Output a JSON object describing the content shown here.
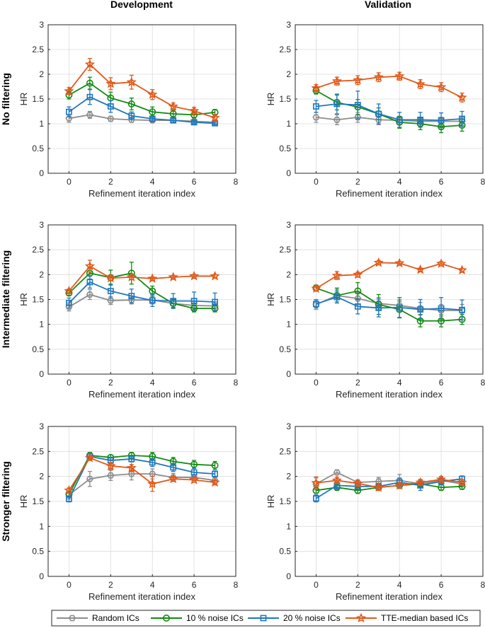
{
  "figure": {
    "column_titles": [
      "Development",
      "Validation"
    ],
    "row_titles": [
      "No filtering",
      "Intermediate filtering",
      "Stronger filtering"
    ],
    "legend": [
      "Random ICs",
      "10 % noise ICs",
      "20 % noise ICs",
      "TTE-median based ICs"
    ],
    "series_colors": [
      "#8c8c8c",
      "#138a13",
      "#1f77bd",
      "#e05a1b"
    ],
    "series_markers": [
      "hexagon",
      "circle",
      "square",
      "star"
    ]
  },
  "chart_data": [
    {
      "type": "line",
      "panel": "Development / No filtering",
      "title": "Development",
      "row_title": "No filtering",
      "xlabel": "Refinement iteration index",
      "ylabel": "HR",
      "xlim": [
        -1,
        8
      ],
      "ylim": [
        0,
        3
      ],
      "xticks": [
        0,
        2,
        4,
        6,
        8
      ],
      "yticks": [
        0,
        0.5,
        1,
        1.5,
        2,
        2.5,
        3
      ],
      "grid": true,
      "x": [
        0,
        1,
        2,
        3,
        4,
        5,
        6,
        7
      ],
      "series": [
        {
          "name": "Random ICs",
          "values": [
            1.11,
            1.18,
            1.1,
            1.08,
            1.07,
            1.07,
            1.05,
            1.03
          ],
          "err": [
            0.08,
            0.07,
            0.05,
            0.05,
            0.04,
            0.03,
            0.02,
            0.02
          ]
        },
        {
          "name": "10 % noise ICs",
          "values": [
            1.58,
            1.82,
            1.52,
            1.4,
            1.24,
            1.2,
            1.18,
            1.23
          ],
          "err": [
            0.08,
            0.12,
            0.12,
            0.12,
            0.1,
            0.06,
            0.06,
            0.06
          ]
        },
        {
          "name": "20 % noise ICs",
          "values": [
            1.24,
            1.54,
            1.35,
            1.16,
            1.1,
            1.07,
            1.03,
            1.01
          ],
          "err": [
            0.1,
            0.15,
            0.12,
            0.08,
            0.06,
            0.04,
            0.03,
            0.03
          ]
        },
        {
          "name": "TTE-median based ICs",
          "values": [
            1.66,
            2.2,
            1.81,
            1.84,
            1.59,
            1.35,
            1.26,
            1.12
          ],
          "err": [
            0.07,
            0.12,
            0.12,
            0.14,
            0.1,
            0.07,
            0.07,
            0.07
          ]
        }
      ]
    },
    {
      "type": "line",
      "panel": "Validation / No filtering",
      "title": "Validation",
      "row_title": "No filtering",
      "xlabel": "Refinement iteration index",
      "ylabel": "HR",
      "xlim": [
        -1,
        8
      ],
      "ylim": [
        0,
        3
      ],
      "xticks": [
        0,
        2,
        4,
        6,
        8
      ],
      "yticks": [
        0,
        0.5,
        1,
        1.5,
        2,
        2.5,
        3
      ],
      "grid": true,
      "x": [
        0,
        1,
        2,
        3,
        4,
        5,
        6,
        7
      ],
      "series": [
        {
          "name": "Random ICs",
          "values": [
            1.13,
            1.08,
            1.13,
            1.08,
            1.07,
            1.05,
            1.05,
            1.05
          ],
          "err": [
            0.1,
            0.1,
            0.1,
            0.1,
            0.08,
            0.08,
            0.08,
            0.08
          ]
        },
        {
          "name": "10 % noise ICs",
          "values": [
            1.67,
            1.43,
            1.34,
            1.2,
            1.03,
            1.0,
            0.94,
            0.97
          ],
          "err": [
            0.07,
            0.15,
            0.15,
            0.12,
            0.12,
            0.12,
            0.12,
            0.12
          ]
        },
        {
          "name": "20 % noise ICs",
          "values": [
            1.35,
            1.4,
            1.38,
            1.2,
            1.08,
            1.08,
            1.07,
            1.1
          ],
          "err": [
            0.12,
            0.2,
            0.28,
            0.2,
            0.15,
            0.15,
            0.15,
            0.15
          ]
        },
        {
          "name": "TTE-median based ICs",
          "values": [
            1.72,
            1.86,
            1.88,
            1.94,
            1.96,
            1.8,
            1.74,
            1.53
          ],
          "err": [
            0.07,
            0.08,
            0.09,
            0.09,
            0.08,
            0.09,
            0.09,
            0.09
          ]
        }
      ]
    },
    {
      "type": "line",
      "panel": "Development / Intermediate filtering",
      "title": "Development",
      "row_title": "Intermediate filtering",
      "xlabel": "Refinement iteration index",
      "ylabel": "HR",
      "xlim": [
        -1,
        8
      ],
      "ylim": [
        0,
        3
      ],
      "xticks": [
        0,
        2,
        4,
        6,
        8
      ],
      "yticks": [
        0,
        0.5,
        1,
        1.5,
        2,
        2.5,
        3
      ],
      "grid": true,
      "x": [
        0,
        1,
        2,
        3,
        4,
        5,
        6,
        7
      ],
      "series": [
        {
          "name": "Random ICs",
          "values": [
            1.35,
            1.6,
            1.48,
            1.49,
            1.49,
            1.42,
            1.38,
            1.37
          ],
          "err": [
            0.08,
            0.1,
            0.08,
            0.08,
            0.08,
            0.08,
            0.08,
            0.08
          ]
        },
        {
          "name": "10 % noise ICs",
          "values": [
            1.63,
            2.03,
            1.94,
            2.03,
            1.67,
            1.42,
            1.32,
            1.32
          ],
          "err": [
            0.05,
            0.12,
            0.15,
            0.22,
            0.1,
            0.08,
            0.07,
            0.07
          ]
        },
        {
          "name": "20 % noise ICs",
          "values": [
            1.43,
            1.85,
            1.67,
            1.57,
            1.48,
            1.47,
            1.47,
            1.45
          ],
          "err": [
            0.1,
            0.12,
            0.14,
            0.14,
            0.12,
            0.15,
            0.18,
            0.18
          ]
        },
        {
          "name": "TTE-median based ICs",
          "values": [
            1.67,
            2.17,
            1.93,
            1.95,
            1.92,
            1.95,
            1.97,
            1.97
          ],
          "err": [
            0.04,
            0.12,
            0.05,
            0.05,
            0.03,
            0.03,
            0.03,
            0.03
          ]
        }
      ]
    },
    {
      "type": "line",
      "panel": "Validation / Intermediate filtering",
      "title": "Validation",
      "row_title": "Intermediate filtering",
      "xlabel": "Refinement iteration index",
      "ylabel": "HR",
      "xlim": [
        -1,
        8
      ],
      "ylim": [
        0,
        3
      ],
      "xticks": [
        0,
        2,
        4,
        6,
        8
      ],
      "yticks": [
        0,
        0.5,
        1,
        1.5,
        2,
        2.5,
        3
      ],
      "grid": true,
      "x": [
        0,
        1,
        2,
        3,
        4,
        5,
        6,
        7
      ],
      "series": [
        {
          "name": "Random ICs",
          "values": [
            1.4,
            1.58,
            1.52,
            1.42,
            1.38,
            1.32,
            1.28,
            1.28
          ],
          "err": [
            0.1,
            0.12,
            0.12,
            0.12,
            0.12,
            0.12,
            0.12,
            0.12
          ]
        },
        {
          "name": "10 % noise ICs",
          "values": [
            1.73,
            1.58,
            1.67,
            1.4,
            1.3,
            1.07,
            1.07,
            1.1
          ],
          "err": [
            0.06,
            0.15,
            0.17,
            0.2,
            0.17,
            0.12,
            0.12,
            0.1
          ]
        },
        {
          "name": "20 % noise ICs",
          "values": [
            1.41,
            1.55,
            1.36,
            1.33,
            1.34,
            1.3,
            1.32,
            1.29
          ],
          "err": [
            0.08,
            0.12,
            0.15,
            0.18,
            0.2,
            0.2,
            0.22,
            0.2
          ]
        },
        {
          "name": "TTE-median based ICs",
          "values": [
            1.72,
            1.98,
            2.0,
            2.24,
            2.23,
            2.1,
            2.22,
            2.09
          ],
          "err": [
            0.05,
            0.08,
            0.05,
            0.04,
            0.03,
            0.03,
            0.04,
            0.03
          ]
        }
      ]
    },
    {
      "type": "line",
      "panel": "Development / Stronger filtering",
      "title": "Development",
      "row_title": "Stronger filtering",
      "xlabel": "Refinement iteration index",
      "ylabel": "HR",
      "xlim": [
        -1,
        8
      ],
      "ylim": [
        0,
        3
      ],
      "xticks": [
        0,
        2,
        4,
        6,
        8
      ],
      "yticks": [
        0,
        0.5,
        1,
        1.5,
        2,
        2.5,
        3
      ],
      "grid": true,
      "x": [
        0,
        1,
        2,
        3,
        4,
        5,
        6,
        7
      ],
      "series": [
        {
          "name": "Random ICs",
          "values": [
            1.63,
            1.95,
            2.02,
            2.05,
            2.05,
            1.98,
            1.98,
            1.92
          ],
          "err": [
            0.08,
            0.15,
            0.1,
            0.12,
            0.1,
            0.08,
            0.06,
            0.06
          ]
        },
        {
          "name": "10 % noise ICs",
          "values": [
            1.65,
            2.42,
            2.38,
            2.42,
            2.4,
            2.3,
            2.24,
            2.22
          ],
          "err": [
            0.06,
            0.06,
            0.05,
            0.06,
            0.08,
            0.08,
            0.08,
            0.08
          ]
        },
        {
          "name": "20 % noise ICs",
          "values": [
            1.55,
            2.4,
            2.32,
            2.35,
            2.28,
            2.18,
            2.08,
            2.05
          ],
          "err": [
            0.06,
            0.06,
            0.06,
            0.06,
            0.08,
            0.08,
            0.08,
            0.06
          ]
        },
        {
          "name": "TTE-median based ICs",
          "values": [
            1.72,
            2.37,
            2.21,
            2.17,
            1.85,
            1.95,
            1.93,
            1.88
          ],
          "err": [
            0.05,
            0.05,
            0.07,
            0.07,
            0.15,
            0.05,
            0.04,
            0.05
          ]
        }
      ]
    },
    {
      "type": "line",
      "panel": "Validation / Stronger filtering",
      "title": "Validation",
      "row_title": "Stronger filtering",
      "xlabel": "Refinement iteration index",
      "ylabel": "HR",
      "xlim": [
        -1,
        8
      ],
      "ylim": [
        0,
        3
      ],
      "xticks": [
        0,
        2,
        4,
        6,
        8
      ],
      "yticks": [
        0,
        0.5,
        1,
        1.5,
        2,
        2.5,
        3
      ],
      "grid": true,
      "x": [
        0,
        1,
        2,
        3,
        4,
        5,
        6,
        7
      ],
      "series": [
        {
          "name": "Random ICs",
          "values": [
            1.85,
            2.08,
            1.88,
            1.9,
            1.92,
            1.85,
            1.92,
            1.85
          ],
          "err": [
            0.12,
            0.05,
            0.05,
            0.08,
            0.12,
            0.08,
            0.06,
            0.06
          ]
        },
        {
          "name": "10 % noise ICs",
          "values": [
            1.72,
            1.78,
            1.72,
            1.78,
            1.82,
            1.85,
            1.78,
            1.8
          ],
          "err": [
            0.06,
            0.06,
            0.06,
            0.06,
            0.06,
            0.06,
            0.06,
            0.06
          ]
        },
        {
          "name": "20 % noise ICs",
          "values": [
            1.56,
            1.82,
            1.8,
            1.8,
            1.88,
            1.82,
            1.9,
            1.95
          ],
          "err": [
            0.07,
            0.07,
            0.06,
            0.06,
            0.08,
            0.1,
            0.06,
            0.06
          ]
        },
        {
          "name": "TTE-median based ICs",
          "values": [
            1.87,
            1.92,
            1.86,
            1.78,
            1.82,
            1.88,
            1.94,
            1.88
          ],
          "err": [
            0.12,
            0.06,
            0.06,
            0.06,
            0.06,
            0.06,
            0.06,
            0.06
          ]
        }
      ]
    }
  ]
}
